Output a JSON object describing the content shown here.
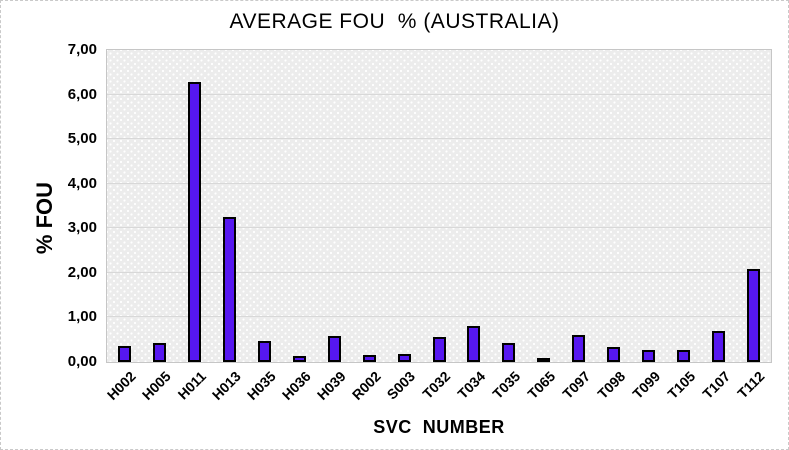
{
  "figure": {
    "border_color": "#c9c9c9",
    "background": "#ffffff"
  },
  "chart_data": {
    "type": "bar",
    "title": "AVERAGE FOU  % (AUSTRALIA)",
    "xlabel": "SVC  NUMBER",
    "ylabel": "% FOU",
    "categories": [
      "H002",
      "H005",
      "H011",
      "H013",
      "H035",
      "H036",
      "H039",
      "R002",
      "S003",
      "T032",
      "T034",
      "T035",
      "T065",
      "T097",
      "T098",
      "T099",
      "T105",
      "T107",
      "T112"
    ],
    "values": [
      0.37,
      0.42,
      6.28,
      3.26,
      0.48,
      0.13,
      0.58,
      0.15,
      0.19,
      0.57,
      0.8,
      0.43,
      0.02,
      0.6,
      0.33,
      0.28,
      0.26,
      0.7,
      2.08
    ],
    "ylim": [
      0,
      7
    ],
    "ytick_step": 1,
    "ytick_labels": [
      "0,00",
      "1,00",
      "2,00",
      "3,00",
      "4,00",
      "5,00",
      "6,00",
      "7,00"
    ],
    "decimal_separator": ",",
    "grid": true,
    "legend": false,
    "bar_color": "#5617f0",
    "bar_border_color": "#000000",
    "plot_bg_color": "#ececec",
    "gridline_color": "#d8d8d8"
  }
}
